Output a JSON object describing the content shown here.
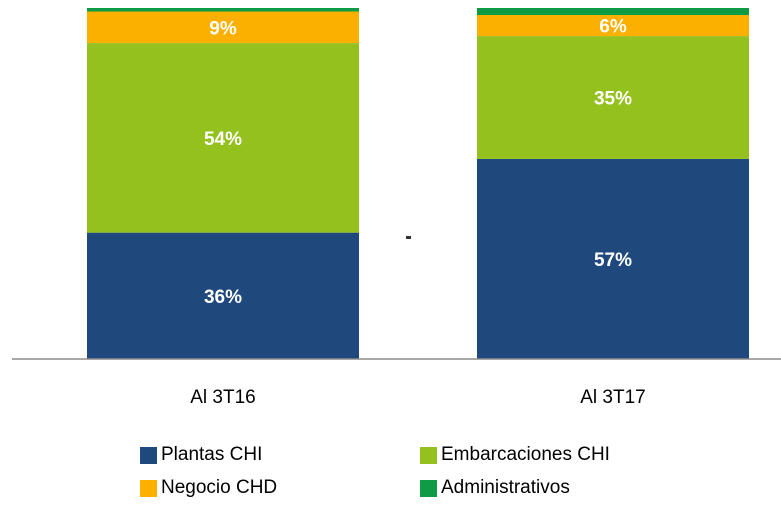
{
  "chart_data": {
    "type": "bar",
    "stacked": true,
    "normalized": true,
    "categories": [
      "Al 3T16",
      "Al 3T17"
    ],
    "series": [
      {
        "name": "Plantas CHI",
        "color": "#1f497d",
        "values": [
          36,
          57
        ],
        "labels": [
          "36%",
          "57%"
        ]
      },
      {
        "name": "Embarcaciones CHI",
        "color": "#95c11f",
        "values": [
          54,
          35
        ],
        "labels": [
          "54%",
          "35%"
        ]
      },
      {
        "name": "Negocio CHD",
        "color": "#fbb000",
        "values": [
          9,
          6
        ],
        "labels": [
          "9%",
          "6%"
        ]
      },
      {
        "name": "Administrativos",
        "color": "#0f9b45",
        "values": [
          1,
          2
        ],
        "labels": [
          "",
          ""
        ]
      }
    ],
    "ylim": [
      0,
      100
    ],
    "legend_position": "bottom",
    "grid": false
  }
}
